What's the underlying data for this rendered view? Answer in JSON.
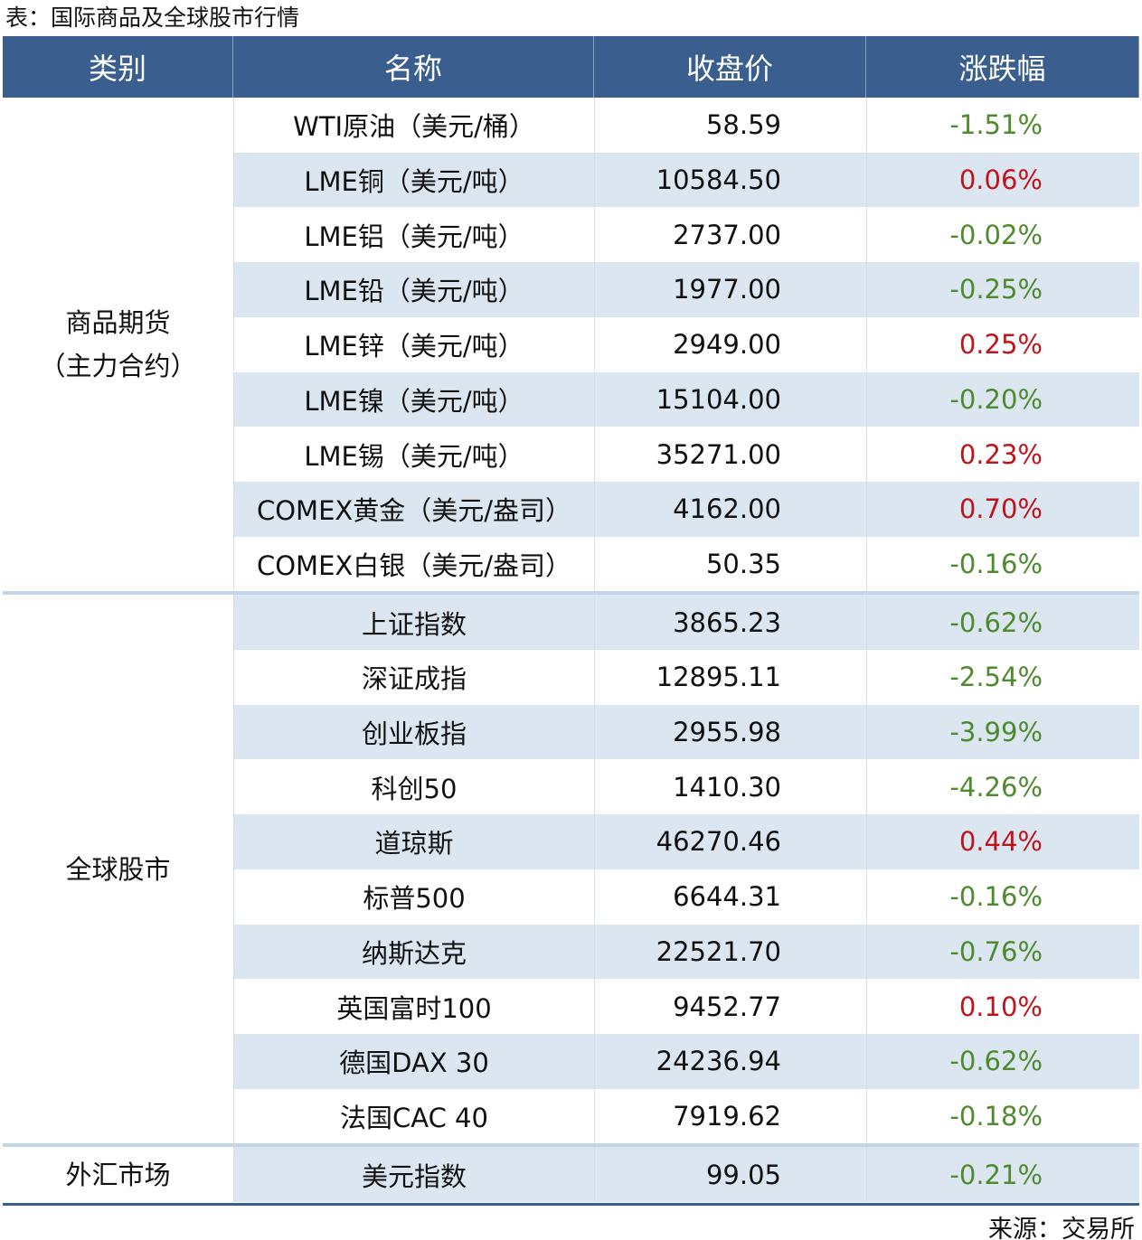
{
  "caption": "表：国际商品及全球股市行情",
  "table": {
    "header": [
      "类别",
      "名称",
      "收盘价",
      "涨跌幅"
    ],
    "groups": [
      {
        "category": "商品期货\n（主力合约）",
        "rows": [
          [
            "WTI原油（美元/桶）",
            "58.59",
            "-1.51%"
          ],
          [
            "LME铜（美元/吨）",
            "10584.50",
            "0.06%"
          ],
          [
            "LME铝（美元/吨）",
            "2737.00",
            "-0.02%"
          ],
          [
            "LME铅（美元/吨）",
            "1977.00",
            "-0.25%"
          ],
          [
            "LME锌（美元/吨）",
            "2949.00",
            "0.25%"
          ],
          [
            "LME镍（美元/吨）",
            "15104.00",
            "-0.20%"
          ],
          [
            "LME锡（美元/吨）",
            "35271.00",
            "0.23%"
          ],
          [
            "COMEX黄金（美元/盎司）",
            "4162.00",
            "0.70%"
          ],
          [
            "COMEX白银（美元/盎司）",
            "50.35",
            "-0.16%"
          ]
        ]
      },
      {
        "category": "全球股市",
        "rows": [
          [
            "上证指数",
            "3865.23",
            "-0.62%"
          ],
          [
            "深证成指",
            "12895.11",
            "-2.54%"
          ],
          [
            "创业板指",
            "2955.98",
            "-3.99%"
          ],
          [
            "科创50",
            "1410.30",
            "-4.26%"
          ],
          [
            "道琼斯",
            "46270.46",
            "0.44%"
          ],
          [
            "标普500",
            "6644.31",
            "-0.16%"
          ],
          [
            "纳斯达克",
            "22521.70",
            "-0.76%"
          ],
          [
            "英国富时100",
            "9452.77",
            "0.10%"
          ],
          [
            "德国DAX 30",
            "24236.94",
            "-0.62%"
          ],
          [
            "法国CAC 40",
            "7919.62",
            "-0.18%"
          ]
        ]
      },
      {
        "category": "外汇市场",
        "rows": [
          [
            "美元指数",
            "99.05",
            "-0.21%"
          ]
        ]
      }
    ]
  },
  "source": "来源：交易所"
}
